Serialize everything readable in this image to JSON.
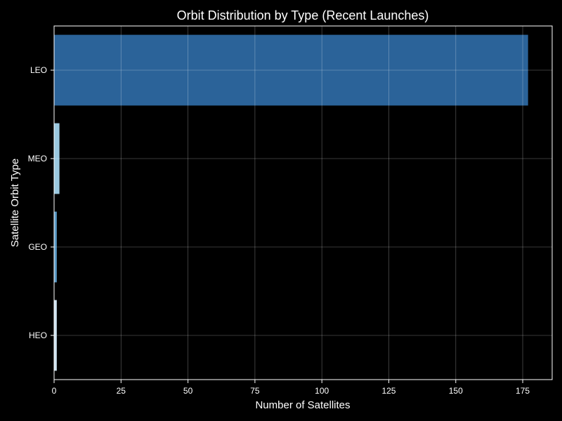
{
  "chart_data": {
    "type": "bar",
    "orientation": "horizontal",
    "title": "Orbit Distribution by Type (Recent Launches)",
    "xlabel": "Number of Satellites",
    "ylabel": "Satellite Orbit Type",
    "categories": [
      "LEO",
      "MEO",
      "GEO",
      "HEO"
    ],
    "values": [
      177,
      2,
      1,
      1
    ],
    "colors": [
      "#2b6399",
      "#9ac8e0",
      "#5a9ac6",
      "#d0e4f2"
    ],
    "xlim": [
      0,
      186
    ],
    "xticks": [
      0,
      25,
      50,
      75,
      100,
      125,
      150,
      175
    ],
    "grid": true,
    "background": "#000000",
    "text_color": "#ffffff",
    "grid_color": "#555555"
  }
}
